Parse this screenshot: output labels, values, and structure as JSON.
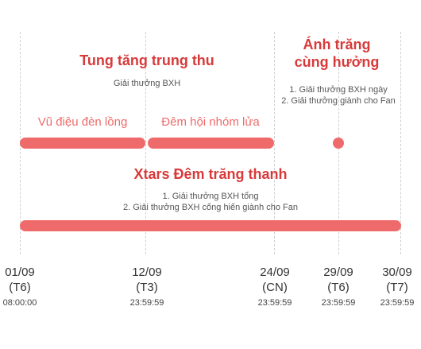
{
  "events": {
    "tung_tang": {
      "title": "Tung tăng trung thu",
      "lines": [
        "Giải thưởng BXH"
      ]
    },
    "anh_trang": {
      "title_lines": [
        "Ánh trăng",
        "cùng hưởng"
      ],
      "lines": [
        "1. Giải thưởng BXH ngày",
        "2. Giải thưởng giành cho Fan"
      ]
    },
    "xtars": {
      "title": "Xtars Đêm trăng thanh",
      "lines": [
        "1. Giải thưởng BXH tổng",
        "2. Giải thưởng BXH cống hiến giành cho Fan"
      ]
    }
  },
  "phases": {
    "vu_dieu": "Vũ điệu đèn lồng",
    "dem_hoi": "Đêm hội nhóm lửa"
  },
  "timeline": [
    {
      "date": "01/09",
      "weekday": "(T6)",
      "time": "08:00:00"
    },
    {
      "date": "12/09",
      "weekday": "(T3)",
      "time": "23:59:59"
    },
    {
      "date": "24/09",
      "weekday": "(CN)",
      "time": "23:59:59"
    },
    {
      "date": "29/09",
      "weekday": "(T6)",
      "time": "23:59:59"
    },
    {
      "date": "30/09",
      "weekday": "(T7)",
      "time": "23:59:59"
    }
  ],
  "colors": {
    "bar": "#ef6b6b",
    "title": "#d83a3a",
    "phase_text": "#ef6b6b"
  }
}
